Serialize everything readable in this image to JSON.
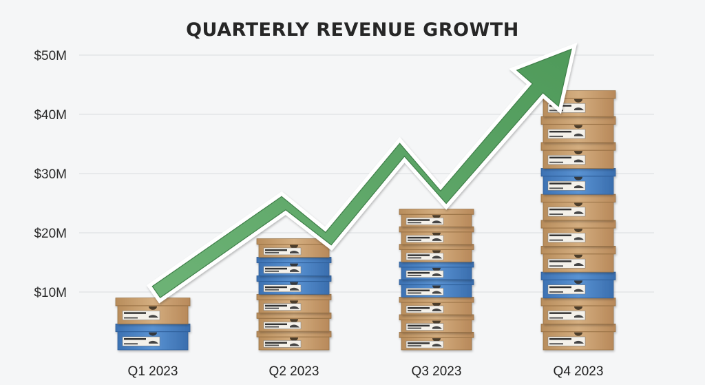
{
  "chart_data": {
    "type": "bar",
    "title": "QUARTERLY REVENUE GROWTH",
    "xlabel": "",
    "ylabel": "",
    "categories": [
      "Q1 2023",
      "Q2 2023",
      "Q3 2023",
      "Q4 2023"
    ],
    "values": [
      9,
      19,
      24,
      44
    ],
    "ylim": [
      0,
      50
    ],
    "yticks": [
      10,
      20,
      30,
      40,
      50
    ],
    "ytick_labels": [
      "$10M",
      "$20M",
      "$30M",
      "$40M",
      "$50M"
    ],
    "grid": true,
    "bar_style": "stacked shoe boxes",
    "box_colors": {
      "kraft": "#c9a477",
      "blue": "#4c86c8"
    },
    "box_patterns": [
      [
        "blue",
        "kraft"
      ],
      [
        "kraft",
        "kraft",
        "kraft",
        "blue",
        "blue",
        "kraft"
      ],
      [
        "kraft",
        "kraft",
        "kraft",
        "blue",
        "blue",
        "kraft",
        "kraft",
        "kraft"
      ],
      [
        "kraft",
        "kraft",
        "blue",
        "kraft",
        "kraft",
        "kraft",
        "blue",
        "kraft",
        "kraft",
        "kraft"
      ]
    ],
    "trend_arrow": {
      "color": "#5fa868",
      "outline": "#ffffff",
      "points": [
        {
          "x": "Q1 2023",
          "y": 10
        },
        {
          "x": "Q2 2023",
          "y": 25
        },
        {
          "x": "Q2-Q3",
          "y": 19
        },
        {
          "x": "Q3 2023",
          "y": 34
        },
        {
          "x": "Q3-Q4",
          "y": 26
        },
        {
          "x": "end",
          "y": 51
        }
      ]
    }
  }
}
